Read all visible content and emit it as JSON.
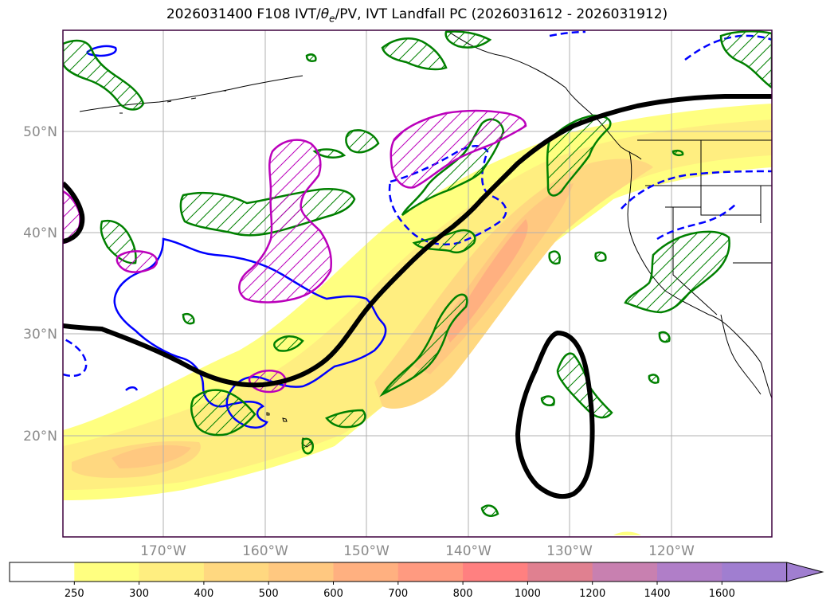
{
  "title": "2026031400 F108 IVT/θe/PV, IVT Landfall PC (2026031612 - 2026031912)",
  "title_parts": {
    "prefix": "2026031400 F108 IVT/",
    "theta": "θ",
    "sub": "e",
    "suffix": "/PV, IVT Landfall PC (2026031612 - 2026031912)"
  },
  "map": {
    "lat_labels": [
      "50°N",
      "40°N",
      "30°N",
      "20°N"
    ],
    "lon_labels": [
      "170°W",
      "160°W",
      "150°W",
      "140°W",
      "130°W",
      "120°W"
    ]
  },
  "colorbar": {
    "labels": [
      "250",
      "300",
      "400",
      "500",
      "600",
      "700",
      "800",
      "1000",
      "1200",
      "1400",
      "1600"
    ],
    "colors": [
      "#ffffff",
      "#ffff80",
      "#ffee80",
      "#ffd880",
      "#ffc880",
      "#ffb080",
      "#ff9a80",
      "#ff8080",
      "#e08090",
      "#c880b0",
      "#b07ec8",
      "#a07ed0"
    ],
    "extend": "max"
  },
  "colors": {
    "ar_axis": "#000000",
    "green_contour": "#008000",
    "blue_contour": "#0000ff",
    "magenta_contour": "#bb00bb",
    "grid": "#b0b0b0",
    "frame": "#3d003d"
  }
}
